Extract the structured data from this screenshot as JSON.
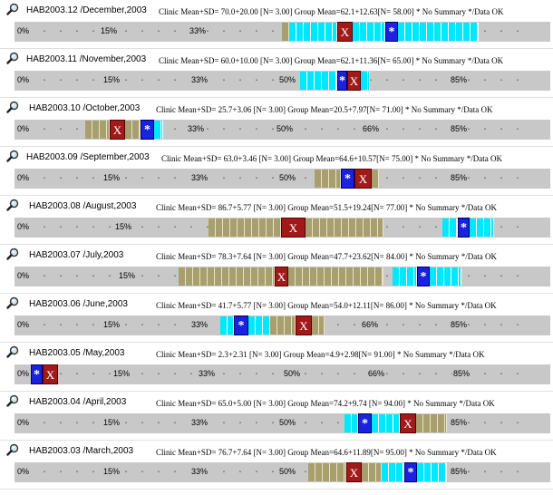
{
  "colors": {
    "cyan": "#00e8ff",
    "olive": "#a89f6e",
    "x_mark": "#a01a1a",
    "star_mark": "#1a22e0",
    "band": "#c8c8c8"
  },
  "icon": "magnifier-icon",
  "records": [
    {
      "title": "HAB2003.12 /December,2003",
      "stats": "Clinic Mean+SD= 70.0+20.00 [N= 3.00] Group Mean=62.1+12.63[N= 58.00] * No Summary */Data OK",
      "x_label": "X",
      "star_label": "*",
      "labels": [
        [
          "0%",
          18
        ],
        [
          "15%",
          110
        ],
        [
          "33%",
          208
        ]
      ]
    },
    {
      "title": "HAB2003.11 /November,2003",
      "stats": "Clinic Mean+SD= 60.0+10.00 [N= 3.00] Group Mean=62.1+11.36[N= 65.00] * No Summary */Data OK",
      "x_label": "X",
      "star_label": "*",
      "labels": [
        [
          "0%",
          18
        ],
        [
          "15%",
          113
        ],
        [
          "33%",
          210
        ],
        [
          "50%",
          307
        ],
        [
          "85%",
          496
        ]
      ]
    },
    {
      "title": "HAB2003.10 /October,2003",
      "stats": "Clinic Mean+SD= 25.7+3.06 [N= 3.00] Group Mean=20.5+7.97[N= 71.00] * No Summary */Data OK",
      "x_label": "X",
      "star_label": "*",
      "labels": [
        [
          "0%",
          18
        ],
        [
          "33%",
          206
        ],
        [
          "50%",
          304
        ],
        [
          "66%",
          399
        ],
        [
          "85%",
          496
        ]
      ]
    },
    {
      "title": "HAB2003.09 /September,2003",
      "stats": "Clinic Mean+SD= 63.0+3.46 [N= 3.00] Group Mean=64.6+10.57[N= 75.00] * No Summary */Data OK",
      "x_label": "X",
      "star_label": "*",
      "labels": [
        [
          "0%",
          18
        ],
        [
          "15%",
          113
        ],
        [
          "33%",
          210
        ],
        [
          "50%",
          307
        ],
        [
          "85%",
          496
        ]
      ]
    },
    {
      "title": "HAB2003.08 /August,2003",
      "stats": "Clinic Mean+SD= 86.7+5.77 [N= 3.00] Group Mean=51.5+19.24[N= 77.00] * No Summary */Data OK",
      "x_label": "X",
      "star_label": "*",
      "labels": [
        [
          "0%",
          18
        ],
        [
          "15%",
          126
        ]
      ]
    },
    {
      "title": "HAB2003.07 /July,2003",
      "stats": "Clinic Mean+SD= 78.3+7.64 [N= 3.00] Group Mean=47.7+23.62[N= 84.00] * No Summary */Data OK",
      "x_label": "X",
      "star_label": "*",
      "labels": [
        [
          "0%",
          18
        ],
        [
          "15%",
          130
        ]
      ]
    },
    {
      "title": "HAB2003.06 /June,2003",
      "stats": "Clinic Mean+SD= 41.7+5.77 [N= 3.00] Group Mean=54.0+12.11[N= 86.00] * No Summary */Data OK",
      "x_label": "X",
      "star_label": "*",
      "labels": [
        [
          "0%",
          18
        ],
        [
          "15%",
          113
        ],
        [
          "33%",
          210
        ],
        [
          "66%",
          398
        ],
        [
          "85%",
          496
        ]
      ]
    },
    {
      "title": "HAB2003.05 /May,2003",
      "stats": "Clinic Mean+SD= 2.3+2.31 [N= 3.00] Group Mean=4.9+2.98[N= 91.00] * No Summary */Data OK",
      "x_label": "X",
      "star_label": "*",
      "labels": [
        [
          "0%",
          18
        ],
        [
          "15%",
          124
        ],
        [
          "33%",
          218
        ],
        [
          "50%",
          312
        ],
        [
          "66%",
          405
        ],
        [
          "85%",
          499
        ]
      ]
    },
    {
      "title": "HAB2003.04 /April,2003",
      "stats": "Clinic Mean+SD= 65.0+5.00 [N= 3.00] Group Mean=74.2+9.74 [N= 94.00] * No Summary */Data OK",
      "x_label": "X",
      "star_label": "*",
      "labels": [
        [
          "0%",
          18
        ],
        [
          "15%",
          113
        ],
        [
          "33%",
          210
        ],
        [
          "50%",
          307
        ],
        [
          "85%",
          496
        ]
      ]
    },
    {
      "title": "HAB2003.03 /March,2003",
      "stats": "Clinic Mean+SD= 76.7+7.64 [N= 3.00] Group Mean=64.6+11.89[N= 95.00] * No Summary */Data OK",
      "x_label": "X",
      "star_label": "*",
      "labels": [
        [
          "0%",
          18
        ],
        [
          "15%",
          113
        ],
        [
          "33%",
          210
        ],
        [
          "50%",
          307
        ],
        [
          "85%",
          496
        ]
      ]
    }
  ]
}
